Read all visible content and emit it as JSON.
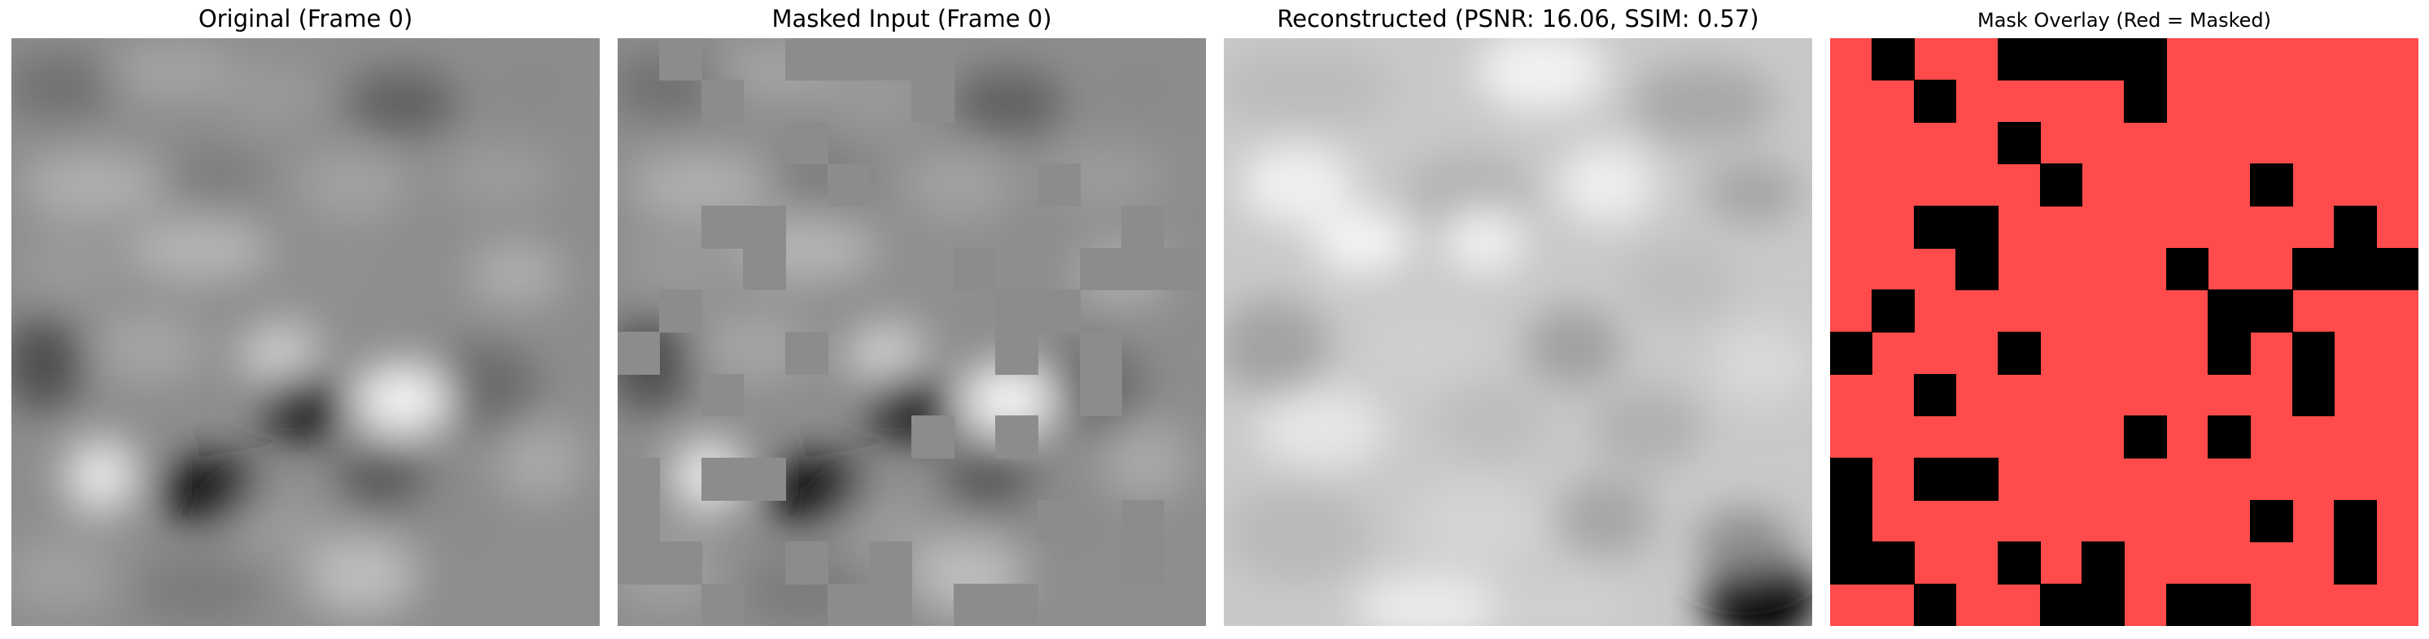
{
  "panels": [
    {
      "title": "Original (Frame 0)"
    },
    {
      "title": "Masked Input (Frame 0)"
    },
    {
      "title": "Reconstructed (PSNR: 16.06, SSIM: 0.57)"
    },
    {
      "title": "Mask Overlay (Red = Masked)"
    }
  ],
  "mask": {
    "rows": 14,
    "cols": 14,
    "masked_color": "#ff4b4b",
    "visible_color": "#000000",
    "fill_gray": "#8c8c8c",
    "visible_cells": [
      [
        0,
        1
      ],
      [
        0,
        4
      ],
      [
        0,
        5
      ],
      [
        0,
        6
      ],
      [
        0,
        7
      ],
      [
        1,
        2
      ],
      [
        1,
        7
      ],
      [
        2,
        4
      ],
      [
        3,
        5
      ],
      [
        3,
        10
      ],
      [
        4,
        2
      ],
      [
        4,
        3
      ],
      [
        4,
        12
      ],
      [
        5,
        3
      ],
      [
        5,
        8
      ],
      [
        5,
        11
      ],
      [
        5,
        12
      ],
      [
        5,
        13
      ],
      [
        6,
        1
      ],
      [
        6,
        9
      ],
      [
        6,
        10
      ],
      [
        7,
        0
      ],
      [
        7,
        4
      ],
      [
        7,
        9
      ],
      [
        7,
        11
      ],
      [
        8,
        2
      ],
      [
        8,
        11
      ],
      [
        9,
        7
      ],
      [
        9,
        9
      ],
      [
        10,
        0
      ],
      [
        10,
        2
      ],
      [
        10,
        3
      ],
      [
        11,
        0
      ],
      [
        11,
        10
      ],
      [
        11,
        12
      ],
      [
        12,
        0
      ],
      [
        12,
        1
      ],
      [
        12,
        4
      ],
      [
        12,
        6
      ],
      [
        12,
        12
      ],
      [
        13,
        2
      ],
      [
        13,
        5
      ],
      [
        13,
        6
      ],
      [
        13,
        8
      ],
      [
        13,
        9
      ]
    ]
  }
}
